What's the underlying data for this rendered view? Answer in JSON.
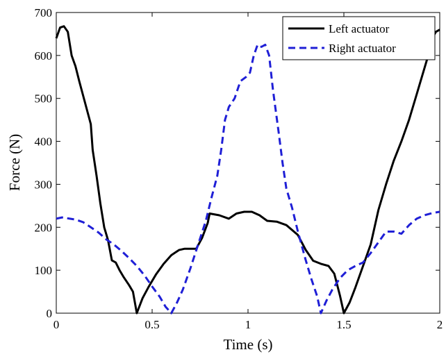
{
  "chart_data": {
    "type": "line",
    "title": "",
    "xlabel": "Time (s)",
    "ylabel": "Force (N)",
    "xlim": [
      0,
      2
    ],
    "ylim": [
      0,
      700
    ],
    "xticks": [
      0,
      0.5,
      1,
      1.5,
      2
    ],
    "xtick_labels": [
      "0",
      "0.5",
      "1",
      "1.5",
      "2"
    ],
    "yticks": [
      0,
      100,
      200,
      300,
      400,
      500,
      600,
      700
    ],
    "ytick_labels": [
      "0",
      "100",
      "200",
      "300",
      "400",
      "500",
      "600",
      "700"
    ],
    "grid": false,
    "legend_position": "top-right",
    "series": [
      {
        "name": "Left actuator",
        "color": "#000000",
        "line_style": "solid",
        "points": [
          [
            0,
            640
          ],
          [
            0.02,
            665
          ],
          [
            0.04,
            668
          ],
          [
            0.06,
            655
          ],
          [
            0.08,
            600
          ],
          [
            0.1,
            575
          ],
          [
            0.12,
            540
          ],
          [
            0.15,
            490
          ],
          [
            0.18,
            440
          ],
          [
            0.19,
            380
          ],
          [
            0.21,
            320
          ],
          [
            0.23,
            255
          ],
          [
            0.25,
            200
          ],
          [
            0.27,
            170
          ],
          [
            0.29,
            123
          ],
          [
            0.31,
            118
          ],
          [
            0.33,
            100
          ],
          [
            0.35,
            85
          ],
          [
            0.38,
            65
          ],
          [
            0.4,
            50
          ],
          [
            0.42,
            0
          ],
          [
            0.45,
            35
          ],
          [
            0.48,
            60
          ],
          [
            0.52,
            90
          ],
          [
            0.56,
            115
          ],
          [
            0.6,
            135
          ],
          [
            0.64,
            147
          ],
          [
            0.67,
            150
          ],
          [
            0.7,
            150
          ],
          [
            0.73,
            150
          ],
          [
            0.76,
            175
          ],
          [
            0.79,
            210
          ],
          [
            0.8,
            232
          ],
          [
            0.85,
            228
          ],
          [
            0.9,
            220
          ],
          [
            0.94,
            232
          ],
          [
            0.98,
            236
          ],
          [
            1.02,
            236
          ],
          [
            1.06,
            228
          ],
          [
            1.1,
            215
          ],
          [
            1.15,
            213
          ],
          [
            1.2,
            205
          ],
          [
            1.26,
            182
          ],
          [
            1.3,
            148
          ],
          [
            1.34,
            122
          ],
          [
            1.38,
            115
          ],
          [
            1.42,
            110
          ],
          [
            1.45,
            92
          ],
          [
            1.48,
            40
          ],
          [
            1.5,
            0
          ],
          [
            1.53,
            25
          ],
          [
            1.56,
            60
          ],
          [
            1.6,
            110
          ],
          [
            1.64,
            160
          ],
          [
            1.68,
            240
          ],
          [
            1.72,
            300
          ],
          [
            1.76,
            355
          ],
          [
            1.8,
            400
          ],
          [
            1.84,
            450
          ],
          [
            1.88,
            510
          ],
          [
            1.92,
            570
          ],
          [
            1.94,
            600
          ],
          [
            1.96,
            640
          ],
          [
            1.98,
            655
          ],
          [
            2,
            660
          ]
        ]
      },
      {
        "name": "Right actuator",
        "color": "#1f1fd6",
        "line_style": "dashed",
        "points": [
          [
            0,
            220
          ],
          [
            0.03,
            223
          ],
          [
            0.07,
            220
          ],
          [
            0.1,
            218
          ],
          [
            0.14,
            212
          ],
          [
            0.18,
            200
          ],
          [
            0.22,
            188
          ],
          [
            0.26,
            172
          ],
          [
            0.3,
            160
          ],
          [
            0.34,
            145
          ],
          [
            0.38,
            128
          ],
          [
            0.42,
            110
          ],
          [
            0.46,
            88
          ],
          [
            0.5,
            62
          ],
          [
            0.54,
            38
          ],
          [
            0.57,
            15
          ],
          [
            0.6,
            0
          ],
          [
            0.63,
            25
          ],
          [
            0.66,
            55
          ],
          [
            0.7,
            105
          ],
          [
            0.74,
            160
          ],
          [
            0.78,
            215
          ],
          [
            0.81,
            270
          ],
          [
            0.84,
            320
          ],
          [
            0.86,
            380
          ],
          [
            0.88,
            450
          ],
          [
            0.9,
            480
          ],
          [
            0.93,
            500
          ],
          [
            0.96,
            540
          ],
          [
            0.99,
            550
          ],
          [
            1.01,
            560
          ],
          [
            1.03,
            600
          ],
          [
            1.05,
            625
          ],
          [
            1.07,
            620
          ],
          [
            1.09,
            625
          ],
          [
            1.11,
            600
          ],
          [
            1.13,
            520
          ],
          [
            1.16,
            420
          ],
          [
            1.18,
            350
          ],
          [
            1.2,
            290
          ],
          [
            1.23,
            245
          ],
          [
            1.26,
            190
          ],
          [
            1.3,
            125
          ],
          [
            1.33,
            80
          ],
          [
            1.36,
            40
          ],
          [
            1.38,
            0
          ],
          [
            1.41,
            30
          ],
          [
            1.44,
            55
          ],
          [
            1.48,
            82
          ],
          [
            1.52,
            100
          ],
          [
            1.56,
            110
          ],
          [
            1.6,
            118
          ],
          [
            1.64,
            140
          ],
          [
            1.68,
            165
          ],
          [
            1.72,
            190
          ],
          [
            1.76,
            190
          ],
          [
            1.8,
            185
          ],
          [
            1.84,
            205
          ],
          [
            1.88,
            220
          ],
          [
            1.92,
            228
          ],
          [
            1.96,
            233
          ],
          [
            2,
            236
          ]
        ]
      }
    ]
  }
}
